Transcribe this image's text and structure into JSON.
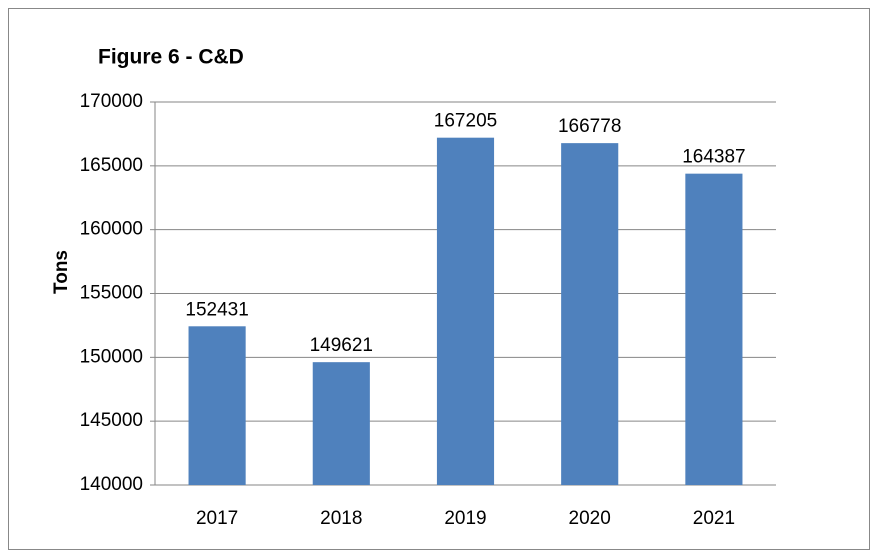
{
  "chart_data": {
    "type": "bar",
    "title": "Figure 6 - C&D",
    "y_label": "Tons",
    "categories": [
      "2017",
      "2018",
      "2019",
      "2020",
      "2021"
    ],
    "values": [
      152431,
      149621,
      167205,
      166778,
      164387
    ],
    "color": "#4f81bd",
    "ylim": [
      140000,
      170000
    ],
    "yticks": [
      140000,
      145000,
      150000,
      155000,
      160000,
      165000,
      170000
    ],
    "grid": true,
    "data_labels": true
  }
}
